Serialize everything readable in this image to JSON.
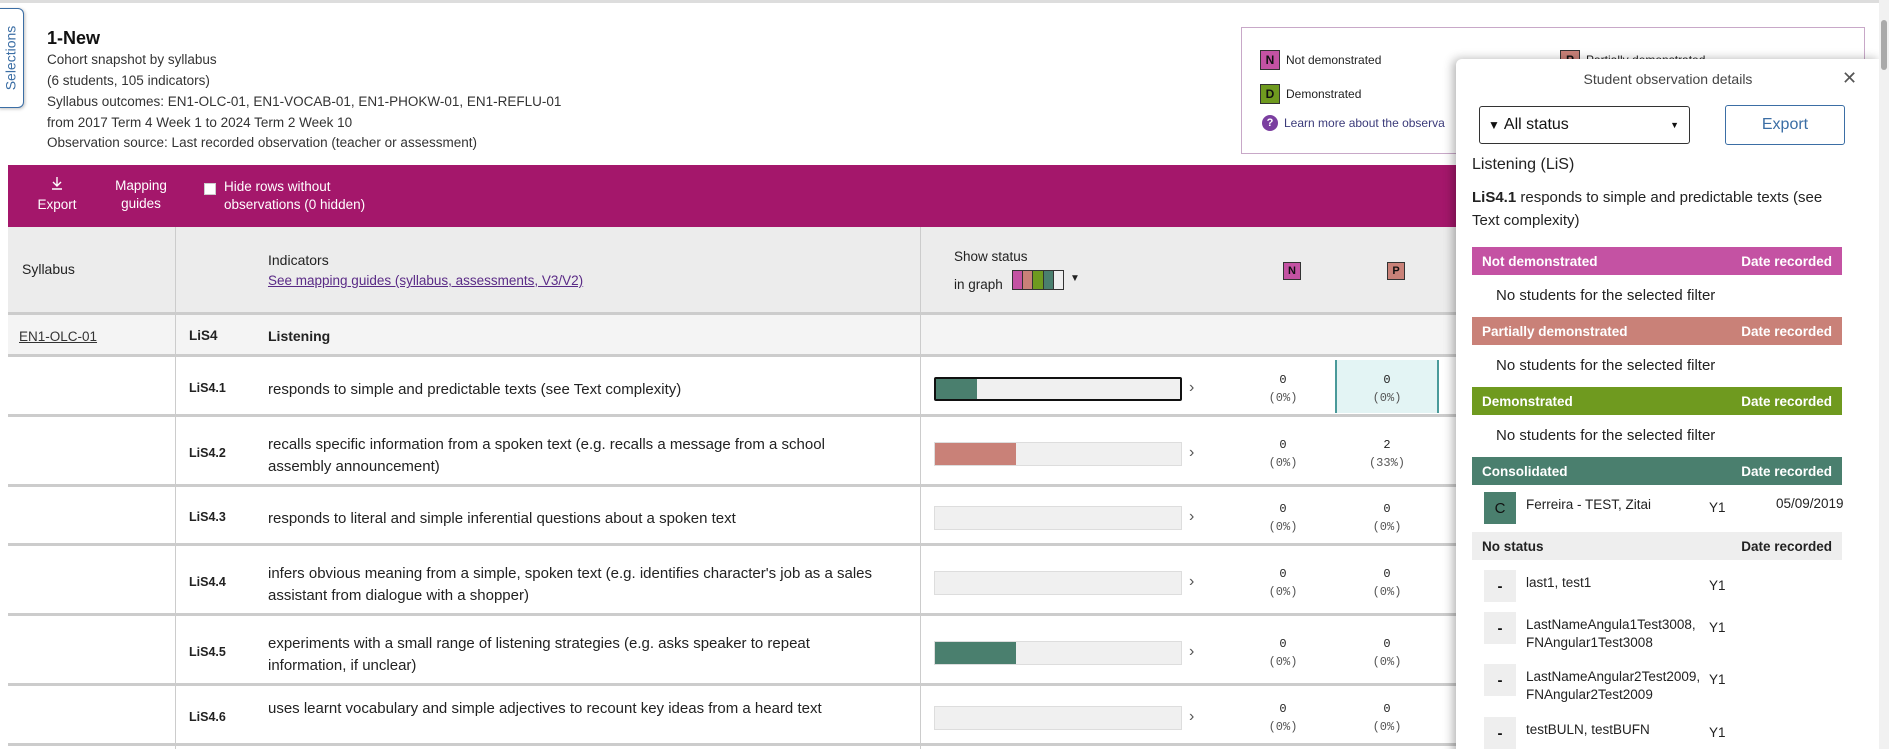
{
  "side_tab": {
    "label": "Selections"
  },
  "header": {
    "title": "1-New",
    "subtitle": "Cohort snapshot by syllabus",
    "counts": "(6 students, 105 indicators)",
    "outcomes": "Syllabus outcomes: EN1-OLC-01, EN1-VOCAB-01, EN1-PHOKW-01, EN1-REFLU-01",
    "range": "from 2017 Term 4 Week 1 to 2024 Term 2 Week 10",
    "source": "Observation source: Last recorded observation (teacher or assessment)"
  },
  "legend": {
    "not_demonstrated": {
      "code": "N",
      "label": "Not demonstrated"
    },
    "partially": {
      "code": "P",
      "label": "Partially demonstrated"
    },
    "demonstrated": {
      "code": "D",
      "label": "Demonstrated"
    },
    "learn_more": "Learn more about the observa"
  },
  "toolbar": {
    "export_label": "Export",
    "mapping_label": "Mapping guides",
    "hide_rows_label": "Hide rows without observations (0 hidden)"
  },
  "table": {
    "col_syllabus": "Syllabus",
    "col_indicators": "Indicators",
    "mapping_link": "See mapping guides (syllabus, assessments, V3/V2)",
    "show_status": "Show status",
    "in_graph": "in graph",
    "col_n": "N",
    "col_p": "P",
    "section": {
      "syllabus": "EN1-OLC-01",
      "code": "LiS4",
      "name": "Listening"
    },
    "rows": [
      {
        "code": "LiS4.1",
        "text": "responds to simple and predictable texts (see Text complexity)",
        "n": "0",
        "n_pct": "(0%)",
        "p": "0",
        "p_pct": "(0%)",
        "bar_fraction": 0.17,
        "bar_color": "#4a7f6e",
        "selected": true
      },
      {
        "code": "LiS4.2",
        "text": "recalls specific information from a spoken text (e.g. recalls a message from a school assembly announcement)",
        "n": "0",
        "n_pct": "(0%)",
        "p": "2",
        "p_pct": "(33%)",
        "bar_fraction": 0.33,
        "bar_color": "#c98178",
        "selected": false
      },
      {
        "code": "LiS4.3",
        "text": "responds to literal and simple inferential questions about a spoken text",
        "n": "0",
        "n_pct": "(0%)",
        "p": "0",
        "p_pct": "(0%)",
        "bar_fraction": 0,
        "bar_color": "#4a7f6e",
        "selected": false
      },
      {
        "code": "LiS4.4",
        "text": "infers obvious meaning from a simple, spoken text (e.g. identifies character's job as a sales assistant from dialogue with a shopper)",
        "n": "0",
        "n_pct": "(0%)",
        "p": "0",
        "p_pct": "(0%)",
        "bar_fraction": 0,
        "bar_color": "#4a7f6e",
        "selected": false
      },
      {
        "code": "LiS4.5",
        "text": "experiments with a small range of listening strategies (e.g. asks speaker to repeat information, if unclear)",
        "n": "0",
        "n_pct": "(0%)",
        "p": "0",
        "p_pct": "(0%)",
        "bar_fraction": 0.33,
        "bar_color": "#4a7f6e",
        "selected": false
      },
      {
        "code": "LiS4.6",
        "text": "uses learnt vocabulary and simple adjectives to recount key ideas from a heard text",
        "n": "0",
        "n_pct": "(0%)",
        "p": "0",
        "p_pct": "(0%)",
        "bar_fraction": 0,
        "bar_color": "#4a7f6e",
        "selected": false
      }
    ]
  },
  "panel": {
    "title": "Student observation details",
    "filter_value": "All status",
    "export_label": "Export",
    "strand": "Listening (LiS)",
    "indicator_code": "LiS4.1",
    "indicator_text": " responds to simple and predictable texts (see Text complexity)",
    "date_header": "Date recorded",
    "empty_text": "No students for the selected filter",
    "sections": {
      "not_demonstrated": "Not demonstrated",
      "partially": "Partially demonstrated",
      "demonstrated": "Demonstrated",
      "consolidated": "Consolidated",
      "no_status": "No status"
    },
    "consolidated_students": [
      {
        "badge": "C",
        "name": "Ferreira - TEST, Zitai",
        "year": "Y1",
        "date": "05/09/2019"
      }
    ],
    "no_status_students": [
      {
        "badge": "-",
        "name": "last1, test1",
        "year": "Y1"
      },
      {
        "badge": "-",
        "name": "LastNameAngula1Test3008, FNAngular1Test3008",
        "year": "Y1"
      },
      {
        "badge": "-",
        "name": "LastNameAngular2Test2009, FNAngular2Test2009",
        "year": "Y1"
      },
      {
        "badge": "-",
        "name": "testBULN, testBUFN",
        "year": "Y1"
      }
    ]
  },
  "colors": {
    "brand": "#a4176b",
    "not_demonstrated": "#c452a3",
    "partially": "#c98178",
    "demonstrated": "#6f9a1f",
    "consolidated": "#4a7f6e",
    "link": "#3b6ea5"
  }
}
